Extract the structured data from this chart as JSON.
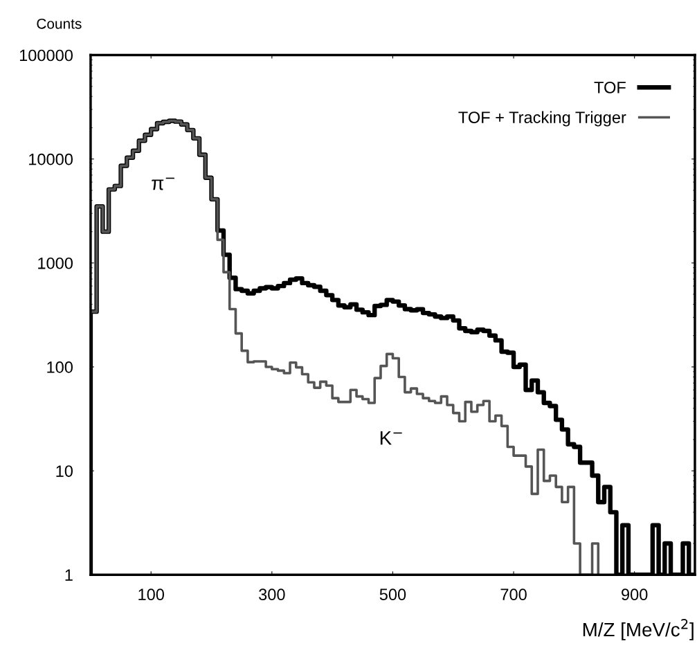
{
  "chart_data": {
    "type": "histogram",
    "xlabel": "M/Z [MeV/c$^{2}$]",
    "ylabel": "Counts",
    "bins": [
      0,
      10,
      20,
      30,
      40,
      50,
      60,
      70,
      80,
      90,
      100,
      110,
      120,
      130,
      140,
      150,
      160,
      170,
      180,
      190,
      200,
      210,
      220,
      230,
      240,
      250,
      260,
      270,
      280,
      290,
      300,
      310,
      320,
      330,
      340,
      350,
      360,
      370,
      380,
      390,
      400,
      410,
      420,
      430,
      440,
      450,
      460,
      470,
      480,
      490,
      500,
      510,
      520,
      530,
      540,
      550,
      560,
      570,
      580,
      590,
      600,
      610,
      620,
      630,
      640,
      650,
      660,
      670,
      680,
      690,
      700,
      710,
      720,
      730,
      740,
      750,
      760,
      770,
      780,
      790,
      800,
      810,
      820,
      830,
      840,
      850,
      860,
      870,
      880,
      890,
      900,
      910,
      920,
      930,
      940,
      950,
      960,
      970,
      980,
      990,
      1000
    ],
    "series": [
      {
        "name": "TOF",
        "color": "#000000",
        "line_style": "solid",
        "values": [
          340,
          3500,
          2000,
          5100,
          5500,
          8600,
          10300,
          12000,
          15000,
          17100,
          19400,
          22100,
          22800,
          23300,
          22900,
          21500,
          19000,
          15800,
          11000,
          6600,
          4100,
          2050,
          1200,
          720,
          560,
          540,
          510,
          540,
          570,
          585,
          570,
          600,
          640,
          690,
          710,
          640,
          610,
          590,
          540,
          490,
          440,
          390,
          375,
          400,
          355,
          335,
          315,
          385,
          395,
          440,
          425,
          390,
          360,
          350,
          358,
          330,
          320,
          305,
          295,
          305,
          280,
          235,
          222,
          216,
          228,
          222,
          200,
          180,
          140,
          137,
          100,
          105,
          60,
          74,
          57,
          45,
          42,
          31,
          25,
          18,
          17,
          12,
          12,
          9,
          5,
          7,
          4,
          null,
          3,
          null,
          null,
          null,
          null,
          3,
          null,
          2,
          null,
          null,
          2,
          null
        ]
      },
      {
        "name": "TOF + Tracking Trigger",
        "color": "#555555",
        "line_style": "solid",
        "bins": [
          0,
          10,
          20,
          30,
          40,
          50,
          60,
          70,
          80,
          90,
          100,
          110,
          120,
          130,
          140,
          150,
          160,
          170,
          180,
          190,
          200,
          210,
          220,
          230,
          240,
          250,
          260,
          270,
          280,
          290,
          300,
          310,
          320,
          330,
          340,
          350,
          360,
          370,
          380,
          390,
          400,
          410,
          420,
          430,
          440,
          450,
          460,
          470,
          480,
          490,
          500,
          510,
          520,
          530,
          540,
          550,
          560,
          570,
          580,
          590,
          600,
          610,
          620,
          630,
          640,
          650,
          660,
          670,
          680,
          690,
          700,
          710,
          720,
          730,
          740,
          750,
          760,
          770,
          780,
          790,
          800,
          810,
          820,
          830,
          840
        ],
        "values": [
          340,
          3500,
          2000,
          5100,
          5500,
          8600,
          10300,
          12000,
          15000,
          17100,
          19400,
          22100,
          22800,
          23300,
          22900,
          21500,
          19000,
          15800,
          11000,
          6600,
          4100,
          1670,
          815,
          360,
          210,
          143,
          111,
          113,
          113,
          100,
          95,
          92,
          87,
          110,
          99,
          85,
          71,
          63,
          72,
          66,
          50,
          46,
          46,
          60,
          52,
          49,
          45,
          78,
          102,
          133,
          121,
          80,
          57,
          62,
          55,
          50,
          47,
          45,
          52,
          43,
          36,
          30,
          46,
          37,
          43,
          47,
          30,
          34,
          27,
          17,
          14,
          14,
          11,
          6,
          16,
          8,
          9,
          7,
          5,
          7,
          2,
          null,
          null,
          2
        ]
      }
    ],
    "log": true,
    "xlim": [
      0,
      1000
    ],
    "xticks": [
      100,
      300,
      500,
      700,
      900
    ],
    "ylim": [
      1,
      100000
    ],
    "yticks": [
      1,
      10,
      100,
      1000,
      10000,
      100000
    ],
    "grid": false,
    "legend": "top right",
    "annotations": [
      "π$^{−}$",
      "K$^{−}$"
    ]
  }
}
